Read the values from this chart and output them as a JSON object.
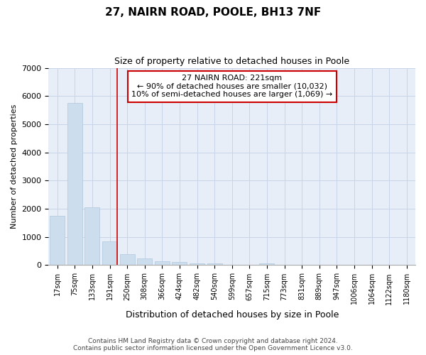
{
  "title1": "27, NAIRN ROAD, POOLE, BH13 7NF",
  "title2": "Size of property relative to detached houses in Poole",
  "xlabel": "Distribution of detached houses by size in Poole",
  "ylabel": "Number of detached properties",
  "categories": [
    "17sqm",
    "75sqm",
    "133sqm",
    "191sqm",
    "250sqm",
    "308sqm",
    "366sqm",
    "424sqm",
    "482sqm",
    "540sqm",
    "599sqm",
    "657sqm",
    "715sqm",
    "773sqm",
    "831sqm",
    "889sqm",
    "947sqm",
    "1006sqm",
    "1064sqm",
    "1122sqm",
    "1180sqm"
  ],
  "values": [
    1750,
    5750,
    2050,
    850,
    380,
    250,
    130,
    100,
    60,
    50,
    0,
    0,
    50,
    0,
    0,
    0,
    0,
    0,
    0,
    0,
    0
  ],
  "bar_color": "#ccdded",
  "bar_edge_color": "#b0c8de",
  "vline_color": "#cc0000",
  "vline_x": 3.5,
  "annotation_text": "27 NAIRN ROAD: 221sqm\n← 90% of detached houses are smaller (10,032)\n10% of semi-detached houses are larger (1,069) →",
  "annotation_box_color": "white",
  "annotation_box_edge": "#cc0000",
  "ylim": [
    0,
    7000
  ],
  "yticks": [
    0,
    1000,
    2000,
    3000,
    4000,
    5000,
    6000,
    7000
  ],
  "grid_color": "#c8d4e8",
  "background_color": "#e8eef8",
  "footer1": "Contains HM Land Registry data © Crown copyright and database right 2024.",
  "footer2": "Contains public sector information licensed under the Open Government Licence v3.0."
}
